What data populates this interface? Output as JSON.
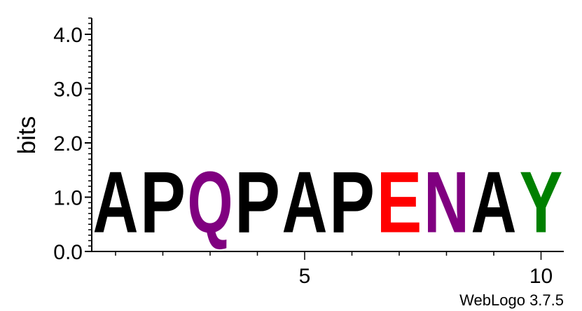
{
  "chart_data": {
    "type": "sequence-logo",
    "ylabel": "bits",
    "ylim": [
      0,
      4.3
    ],
    "y_ticks": [
      {
        "value": 0,
        "label": "0.0"
      },
      {
        "value": 1,
        "label": "1.0"
      },
      {
        "value": 2,
        "label": "2.0"
      },
      {
        "value": 3,
        "label": "3.0"
      },
      {
        "value": 4,
        "label": "4.0"
      }
    ],
    "x_ticks": [
      {
        "value": 5,
        "label": "5"
      },
      {
        "value": 10,
        "label": "10"
      }
    ],
    "positions": [
      {
        "position": 1,
        "letter": "A",
        "bits": 1.8,
        "color": "#000000"
      },
      {
        "position": 2,
        "letter": "P",
        "bits": 1.8,
        "color": "#000000"
      },
      {
        "position": 3,
        "letter": "Q",
        "bits": 1.8,
        "color": "#800080"
      },
      {
        "position": 4,
        "letter": "P",
        "bits": 1.8,
        "color": "#000000"
      },
      {
        "position": 5,
        "letter": "A",
        "bits": 1.8,
        "color": "#000000"
      },
      {
        "position": 6,
        "letter": "P",
        "bits": 1.8,
        "color": "#000000"
      },
      {
        "position": 7,
        "letter": "E",
        "bits": 1.8,
        "color": "#ff0000"
      },
      {
        "position": 8,
        "letter": "N",
        "bits": 1.8,
        "color": "#800080"
      },
      {
        "position": 9,
        "letter": "A",
        "bits": 1.8,
        "color": "#000000"
      },
      {
        "position": 10,
        "letter": "Y",
        "bits": 1.8,
        "color": "#008000"
      }
    ]
  },
  "footer": "WebLogo 3.7.5"
}
